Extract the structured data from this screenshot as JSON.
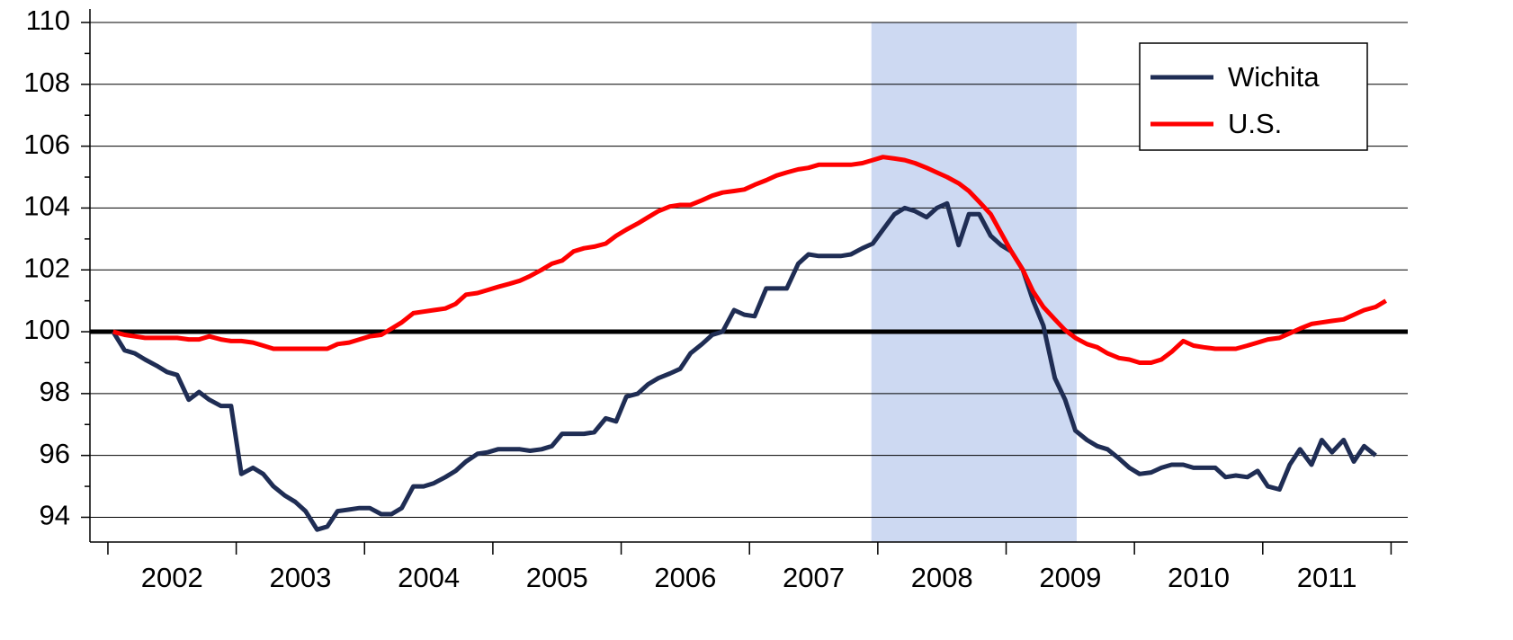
{
  "chart_data": {
    "type": "line",
    "x": [
      2002.04,
      2002.13,
      2002.21,
      2002.29,
      2002.38,
      2002.46,
      2002.54,
      2002.63,
      2002.71,
      2002.79,
      2002.88,
      2002.96,
      2003.04,
      2003.13,
      2003.21,
      2003.29,
      2003.38,
      2003.46,
      2003.54,
      2003.63,
      2003.71,
      2003.79,
      2003.88,
      2003.96,
      2004.04,
      2004.13,
      2004.21,
      2004.29,
      2004.38,
      2004.46,
      2004.54,
      2004.63,
      2004.71,
      2004.79,
      2004.88,
      2004.96,
      2005.04,
      2005.13,
      2005.21,
      2005.29,
      2005.38,
      2005.46,
      2005.54,
      2005.63,
      2005.71,
      2005.79,
      2005.88,
      2005.96,
      2006.04,
      2006.13,
      2006.21,
      2006.29,
      2006.38,
      2006.46,
      2006.54,
      2006.63,
      2006.71,
      2006.79,
      2006.88,
      2006.96,
      2007.04,
      2007.13,
      2007.21,
      2007.29,
      2007.38,
      2007.46,
      2007.54,
      2007.63,
      2007.71,
      2007.79,
      2007.88,
      2007.96,
      2008.04,
      2008.13,
      2008.21,
      2008.29,
      2008.38,
      2008.46,
      2008.54,
      2008.63,
      2008.71,
      2008.79,
      2008.88,
      2008.96,
      2009.04,
      2009.13,
      2009.21,
      2009.29,
      2009.38,
      2009.46,
      2009.54,
      2009.63,
      2009.71,
      2009.79,
      2009.88,
      2009.96,
      2010.04,
      2010.13,
      2010.21,
      2010.29,
      2010.38,
      2010.46,
      2010.54,
      2010.63,
      2010.71,
      2010.79,
      2010.88,
      2010.96,
      2011.04,
      2011.13,
      2011.21,
      2011.29,
      2011.38,
      2011.46,
      2011.54,
      2011.63,
      2011.71,
      2011.79,
      2011.88,
      2011.96
    ],
    "series": [
      {
        "name": "Wichita",
        "color": "#1f2d54",
        "values": [
          100,
          99.4,
          99.3,
          99.1,
          98.9,
          98.7,
          98.6,
          97.8,
          98.05,
          97.8,
          97.6,
          97.6,
          95.4,
          95.6,
          95.4,
          95.0,
          94.7,
          94.5,
          94.2,
          93.6,
          93.7,
          94.2,
          94.25,
          94.3,
          94.3,
          94.1,
          94.1,
          94.3,
          95.0,
          95.0,
          95.1,
          95.3,
          95.5,
          95.8,
          96.05,
          96.1,
          96.2,
          96.2,
          96.2,
          96.15,
          96.2,
          96.3,
          96.7,
          96.7,
          96.7,
          96.75,
          97.2,
          97.1,
          97.9,
          98.0,
          98.3,
          98.5,
          98.65,
          98.8,
          99.3,
          99.6,
          99.9,
          100.0,
          100.7,
          100.55,
          100.5,
          101.4,
          101.4,
          101.4,
          102.2,
          102.5,
          102.45,
          102.45,
          102.45,
          102.5,
          102.7,
          102.85,
          103.3,
          103.8,
          104.0,
          103.9,
          103.7,
          104.0,
          104.15,
          102.8,
          103.8,
          103.8,
          103.1,
          102.8,
          102.6,
          102.0,
          101.0,
          100.2,
          98.5,
          97.8,
          96.8,
          96.5,
          96.3,
          96.2,
          95.9,
          95.6,
          95.4,
          95.45,
          95.6,
          95.7,
          95.7,
          95.6,
          95.6,
          95.6,
          95.3,
          95.35,
          95.3,
          95.5,
          95.0,
          94.9,
          95.7,
          96.2,
          95.7,
          96.5,
          96.1,
          96.5,
          95.8,
          96.3,
          96.0,
          null
        ]
      },
      {
        "name": "U.S.",
        "color": "#ff0000",
        "values": [
          100,
          99.9,
          99.85,
          99.8,
          99.8,
          99.8,
          99.8,
          99.75,
          99.75,
          99.85,
          99.75,
          99.7,
          99.7,
          99.65,
          99.55,
          99.45,
          99.45,
          99.45,
          99.45,
          99.45,
          99.45,
          99.6,
          99.65,
          99.75,
          99.85,
          99.9,
          100.1,
          100.3,
          100.6,
          100.65,
          100.7,
          100.75,
          100.9,
          101.2,
          101.25,
          101.35,
          101.45,
          101.55,
          101.65,
          101.8,
          102.0,
          102.2,
          102.3,
          102.6,
          102.7,
          102.75,
          102.85,
          103.1,
          103.3,
          103.5,
          103.7,
          103.9,
          104.05,
          104.1,
          104.1,
          104.25,
          104.4,
          104.5,
          104.55,
          104.6,
          104.75,
          104.9,
          105.05,
          105.15,
          105.25,
          105.3,
          105.4,
          105.4,
          105.4,
          105.4,
          105.45,
          105.55,
          105.65,
          105.6,
          105.55,
          105.45,
          105.3,
          105.15,
          105.0,
          104.8,
          104.55,
          104.2,
          103.8,
          103.2,
          102.6,
          102.0,
          101.3,
          100.8,
          100.4,
          100.05,
          99.8,
          99.6,
          99.5,
          99.3,
          99.15,
          99.1,
          99.0,
          99.0,
          99.1,
          99.35,
          99.7,
          99.55,
          99.5,
          99.45,
          99.45,
          99.45,
          99.55,
          99.65,
          99.75,
          99.8,
          99.95,
          100.1,
          100.25,
          100.3,
          100.35,
          100.4,
          100.55,
          100.7,
          100.8,
          101.0
        ]
      }
    ],
    "xlim": [
      2001.86,
      2012.13
    ],
    "xticks": [
      2002,
      2003,
      2004,
      2005,
      2006,
      2007,
      2008,
      2009,
      2010,
      2011
    ],
    "ylim": [
      93.2,
      110
    ],
    "yticks": [
      94,
      96,
      98,
      100,
      102,
      104,
      106,
      108,
      110
    ],
    "grid": true,
    "hline": {
      "value": 100,
      "color": "#000000"
    },
    "shaded_region": {
      "xmin": 2007.95,
      "xmax": 2009.55,
      "color": "#cdd9f2"
    },
    "legend": "upper right"
  }
}
